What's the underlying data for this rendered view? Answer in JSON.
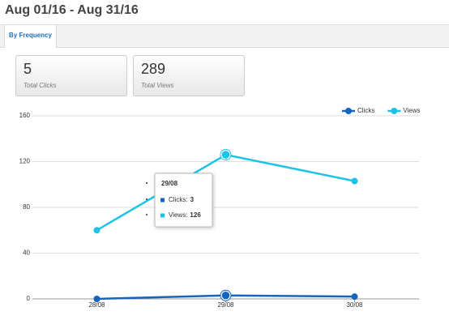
{
  "header": {
    "title": "Aug 01/16 - Aug 31/16"
  },
  "tabs": [
    "By Frequency"
  ],
  "stats": [
    {
      "value": 5,
      "label": "Total Clicks"
    },
    {
      "value": 289,
      "label": "Total Views"
    }
  ],
  "chart_data": {
    "type": "line",
    "categories": [
      "28/08",
      "29/08",
      "30/08"
    ],
    "series": [
      {
        "name": "Clicks",
        "color": "#1565c0",
        "values": [
          0,
          3,
          2
        ]
      },
      {
        "name": "Views",
        "color": "#1cc3e6",
        "values": [
          60,
          126,
          103
        ]
      }
    ],
    "ylim": [
      0,
      160
    ],
    "yticks": [
      0,
      40,
      80,
      120,
      160
    ],
    "grid": true,
    "legend": "top-right",
    "tooltip": {
      "title": "29/08",
      "items": [
        {
          "label": "Clicks:",
          "value": 3
        },
        {
          "label": "Views:",
          "value": 126
        }
      ]
    }
  }
}
